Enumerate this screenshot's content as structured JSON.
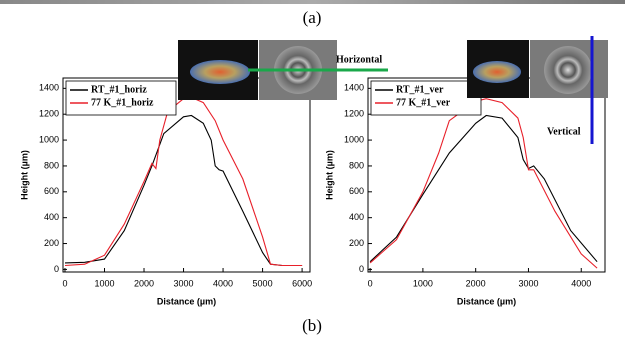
{
  "captions": [
    "(a)",
    "(b)"
  ],
  "chart_data": [
    {
      "type": "line",
      "x_label": "Distance (µm)",
      "y_label": "Height (µm)",
      "annotation": "Horizontal",
      "legend": "upper left",
      "xlim": [
        -50,
        6200
      ],
      "ylim": [
        -20,
        1480
      ],
      "xticks": [
        0,
        1000,
        2000,
        3000,
        4000,
        5000,
        6000
      ],
      "yticks": [
        0,
        200,
        400,
        600,
        800,
        1000,
        1200,
        1400
      ],
      "series": [
        {
          "name": "RT_#1_horiz",
          "color": "#000000",
          "x": [
            0,
            500,
            1000,
            1500,
            2000,
            2200,
            2500,
            3000,
            3200,
            3500,
            3700,
            3800,
            3900,
            4000,
            4500,
            5000,
            5200,
            5500,
            6000
          ],
          "values": [
            50,
            55,
            80,
            300,
            650,
            800,
            1050,
            1180,
            1190,
            1130,
            1000,
            800,
            770,
            760,
            450,
            130,
            40,
            30,
            30
          ]
        },
        {
          "name": "77 K_#1_horiz",
          "color": "#e8202a",
          "x": [
            0,
            500,
            1000,
            1500,
            2000,
            2200,
            2300,
            2400,
            2600,
            3000,
            3200,
            3500,
            3800,
            4000,
            4500,
            5000,
            5200,
            5500,
            6000
          ],
          "values": [
            30,
            40,
            110,
            350,
            680,
            820,
            780,
            1000,
            1220,
            1320,
            1330,
            1290,
            1150,
            1000,
            700,
            250,
            40,
            30,
            30
          ]
        }
      ]
    },
    {
      "type": "line",
      "x_label": "Distance (µm)",
      "y_label": "Height (µm)",
      "annotation": "Vertical",
      "legend": "upper left",
      "xlim": [
        -40,
        4450
      ],
      "ylim": [
        -20,
        1480
      ],
      "xticks": [
        0,
        1000,
        2000,
        3000,
        4000
      ],
      "yticks": [
        0,
        200,
        400,
        600,
        800,
        1000,
        1200,
        1400
      ],
      "series": [
        {
          "name": "RT_#1_ver",
          "color": "#000000",
          "x": [
            0,
            500,
            1000,
            1500,
            2000,
            2200,
            2500,
            2800,
            2900,
            3000,
            3100,
            3300,
            3800,
            4300
          ],
          "values": [
            60,
            250,
            580,
            900,
            1130,
            1190,
            1170,
            1020,
            850,
            780,
            800,
            700,
            300,
            60
          ]
        },
        {
          "name": "77 K_#1_ver",
          "color": "#e8202a",
          "x": [
            0,
            500,
            1000,
            1300,
            1500,
            2000,
            2200,
            2500,
            2800,
            2900,
            3000,
            3100,
            3500,
            4000,
            4300
          ],
          "values": [
            50,
            230,
            600,
            900,
            1150,
            1300,
            1320,
            1290,
            1170,
            1020,
            770,
            770,
            450,
            120,
            10
          ]
        }
      ]
    }
  ]
}
